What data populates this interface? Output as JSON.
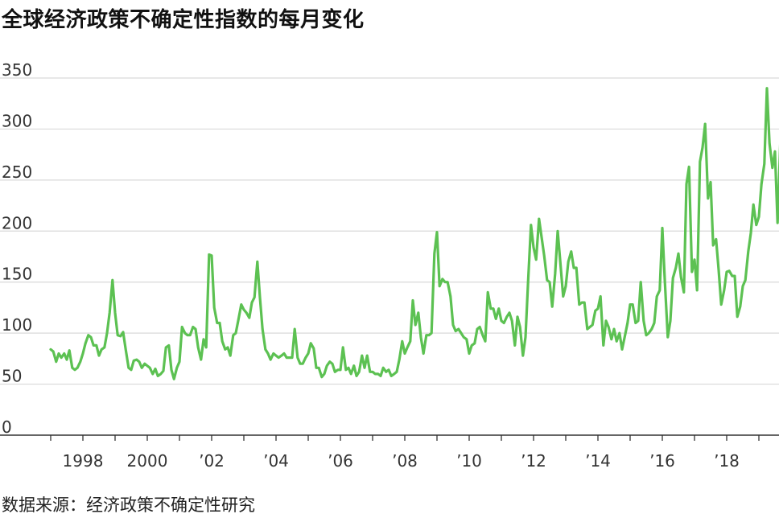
{
  "title": "全球经济政策不确定性指数的每月变化",
  "source": "数据来源：经济政策不确定性研究",
  "colors": {
    "line": "#5cc152",
    "grid": "#d9d9d9",
    "axis": "#333333"
  },
  "chart_data": {
    "type": "line",
    "title": "全球经济政策不确定性指数的每月变化",
    "xlabel": "",
    "ylabel": "",
    "ylim": [
      0,
      350
    ],
    "yticks": [
      "0",
      "50",
      "100",
      "150",
      "200",
      "250",
      "300",
      "350"
    ],
    "ytick_values": [
      0,
      50,
      100,
      150,
      200,
      250,
      300,
      350
    ],
    "xlim": [
      1996.5,
      2019.75
    ],
    "xticks": [
      {
        "value": 1998,
        "label": "1998"
      },
      {
        "value": 2000,
        "label": "2000"
      },
      {
        "value": 2002,
        "label": "’02"
      },
      {
        "value": 2004,
        "label": "’04"
      },
      {
        "value": 2006,
        "label": "’06"
      },
      {
        "value": 2008,
        "label": "’08"
      },
      {
        "value": 2010,
        "label": "’10"
      },
      {
        "value": 2012,
        "label": "’12"
      },
      {
        "value": 2014,
        "label": "’14"
      },
      {
        "value": 2016,
        "label": "’16"
      },
      {
        "value": 2018,
        "label": "’18"
      }
    ],
    "grid": true,
    "series": [
      {
        "name": "",
        "points": [
          [
            1997.0,
            84
          ],
          [
            1997.08,
            82
          ],
          [
            1997.17,
            72
          ],
          [
            1997.25,
            80
          ],
          [
            1997.33,
            76
          ],
          [
            1997.42,
            80
          ],
          [
            1997.5,
            74
          ],
          [
            1997.58,
            83
          ],
          [
            1997.67,
            66
          ],
          [
            1997.75,
            64
          ],
          [
            1997.83,
            66
          ],
          [
            1997.92,
            72
          ],
          [
            1998.0,
            80
          ],
          [
            1998.08,
            90
          ],
          [
            1998.17,
            98
          ],
          [
            1998.25,
            96
          ],
          [
            1998.33,
            88
          ],
          [
            1998.42,
            88
          ],
          [
            1998.5,
            78
          ],
          [
            1998.58,
            84
          ],
          [
            1998.67,
            86
          ],
          [
            1998.75,
            100
          ],
          [
            1998.83,
            120
          ],
          [
            1998.92,
            152
          ],
          [
            1999.0,
            120
          ],
          [
            1999.08,
            98
          ],
          [
            1999.17,
            97
          ],
          [
            1999.25,
            101
          ],
          [
            1999.33,
            84
          ],
          [
            1999.42,
            66
          ],
          [
            1999.5,
            64
          ],
          [
            1999.58,
            73
          ],
          [
            1999.67,
            74
          ],
          [
            1999.75,
            72
          ],
          [
            1999.83,
            66
          ],
          [
            1999.92,
            70
          ],
          [
            2000.0,
            68
          ],
          [
            2000.08,
            66
          ],
          [
            2000.17,
            60
          ],
          [
            2000.25,
            65
          ],
          [
            2000.33,
            58
          ],
          [
            2000.42,
            60
          ],
          [
            2000.5,
            63
          ],
          [
            2000.58,
            86
          ],
          [
            2000.67,
            88
          ],
          [
            2000.75,
            64
          ],
          [
            2000.83,
            55
          ],
          [
            2000.92,
            66
          ],
          [
            2001.0,
            72
          ],
          [
            2001.08,
            106
          ],
          [
            2001.17,
            100
          ],
          [
            2001.25,
            98
          ],
          [
            2001.33,
            98
          ],
          [
            2001.42,
            106
          ],
          [
            2001.5,
            104
          ],
          [
            2001.58,
            86
          ],
          [
            2001.67,
            74
          ],
          [
            2001.75,
            94
          ],
          [
            2001.83,
            86
          ],
          [
            2001.92,
            177
          ],
          [
            2002.0,
            176
          ],
          [
            2002.08,
            125
          ],
          [
            2002.17,
            110
          ],
          [
            2002.25,
            110
          ],
          [
            2002.33,
            92
          ],
          [
            2002.42,
            84
          ],
          [
            2002.5,
            86
          ],
          [
            2002.58,
            78
          ],
          [
            2002.67,
            98
          ],
          [
            2002.75,
            100
          ],
          [
            2002.83,
            113
          ],
          [
            2002.92,
            128
          ],
          [
            2003.0,
            123
          ],
          [
            2003.08,
            120
          ],
          [
            2003.17,
            115
          ],
          [
            2003.25,
            130
          ],
          [
            2003.33,
            135
          ],
          [
            2003.42,
            170
          ],
          [
            2003.5,
            135
          ],
          [
            2003.58,
            104
          ],
          [
            2003.67,
            84
          ],
          [
            2003.75,
            80
          ],
          [
            2003.83,
            74
          ],
          [
            2003.92,
            80
          ],
          [
            2004.0,
            78
          ],
          [
            2004.08,
            76
          ],
          [
            2004.17,
            78
          ],
          [
            2004.25,
            80
          ],
          [
            2004.33,
            76
          ],
          [
            2004.42,
            76
          ],
          [
            2004.5,
            76
          ],
          [
            2004.58,
            104
          ],
          [
            2004.67,
            76
          ],
          [
            2004.75,
            70
          ],
          [
            2004.83,
            70
          ],
          [
            2004.92,
            76
          ],
          [
            2005.0,
            80
          ],
          [
            2005.08,
            90
          ],
          [
            2005.17,
            85
          ],
          [
            2005.25,
            66
          ],
          [
            2005.33,
            66
          ],
          [
            2005.42,
            57
          ],
          [
            2005.5,
            60
          ],
          [
            2005.58,
            68
          ],
          [
            2005.67,
            72
          ],
          [
            2005.75,
            70
          ],
          [
            2005.83,
            62
          ],
          [
            2005.92,
            64
          ],
          [
            2006.0,
            64
          ],
          [
            2006.08,
            86
          ],
          [
            2006.17,
            64
          ],
          [
            2006.25,
            66
          ],
          [
            2006.33,
            60
          ],
          [
            2006.42,
            68
          ],
          [
            2006.5,
            58
          ],
          [
            2006.58,
            62
          ],
          [
            2006.67,
            78
          ],
          [
            2006.75,
            66
          ],
          [
            2006.83,
            78
          ],
          [
            2006.92,
            62
          ],
          [
            2007.0,
            62
          ],
          [
            2007.08,
            60
          ],
          [
            2007.17,
            60
          ],
          [
            2007.25,
            58
          ],
          [
            2007.33,
            66
          ],
          [
            2007.42,
            62
          ],
          [
            2007.5,
            64
          ],
          [
            2007.58,
            58
          ],
          [
            2007.67,
            60
          ],
          [
            2007.75,
            62
          ],
          [
            2007.83,
            74
          ],
          [
            2007.92,
            92
          ],
          [
            2008.0,
            80
          ],
          [
            2008.08,
            86
          ],
          [
            2008.17,
            92
          ],
          [
            2008.25,
            132
          ],
          [
            2008.33,
            108
          ],
          [
            2008.42,
            120
          ],
          [
            2008.5,
            96
          ],
          [
            2008.58,
            80
          ],
          [
            2008.67,
            98
          ],
          [
            2008.75,
            98
          ],
          [
            2008.83,
            100
          ],
          [
            2008.92,
            178
          ],
          [
            2009.0,
            199
          ],
          [
            2009.08,
            146
          ],
          [
            2009.17,
            153
          ],
          [
            2009.25,
            150
          ],
          [
            2009.33,
            150
          ],
          [
            2009.42,
            136
          ],
          [
            2009.5,
            108
          ],
          [
            2009.58,
            102
          ],
          [
            2009.67,
            104
          ],
          [
            2009.75,
            100
          ],
          [
            2009.83,
            96
          ],
          [
            2009.92,
            94
          ],
          [
            2010.0,
            80
          ],
          [
            2010.08,
            88
          ],
          [
            2010.17,
            90
          ],
          [
            2010.25,
            104
          ],
          [
            2010.33,
            106
          ],
          [
            2010.42,
            98
          ],
          [
            2010.5,
            92
          ],
          [
            2010.58,
            140
          ],
          [
            2010.67,
            124
          ],
          [
            2010.75,
            124
          ],
          [
            2010.83,
            114
          ],
          [
            2010.92,
            124
          ],
          [
            2011.0,
            112
          ],
          [
            2011.08,
            110
          ],
          [
            2011.17,
            116
          ],
          [
            2011.25,
            120
          ],
          [
            2011.33,
            112
          ],
          [
            2011.42,
            88
          ],
          [
            2011.5,
            116
          ],
          [
            2011.58,
            106
          ],
          [
            2011.67,
            78
          ],
          [
            2011.75,
            96
          ],
          [
            2011.83,
            150
          ],
          [
            2011.92,
            206
          ],
          [
            2012.0,
            184
          ],
          [
            2012.08,
            172
          ],
          [
            2012.17,
            212
          ],
          [
            2012.25,
            194
          ],
          [
            2012.33,
            176
          ],
          [
            2012.42,
            152
          ],
          [
            2012.5,
            150
          ],
          [
            2012.58,
            126
          ],
          [
            2012.67,
            158
          ],
          [
            2012.75,
            200
          ],
          [
            2012.83,
            170
          ],
          [
            2012.92,
            136
          ],
          [
            2013.0,
            146
          ],
          [
            2013.08,
            170
          ],
          [
            2013.17,
            180
          ],
          [
            2013.25,
            164
          ],
          [
            2013.33,
            164
          ],
          [
            2013.42,
            128
          ],
          [
            2013.5,
            130
          ],
          [
            2013.58,
            130
          ],
          [
            2013.67,
            104
          ],
          [
            2013.75,
            106
          ],
          [
            2013.83,
            108
          ],
          [
            2013.92,
            122
          ],
          [
            2014.0,
            124
          ],
          [
            2014.08,
            136
          ],
          [
            2014.17,
            88
          ],
          [
            2014.25,
            112
          ],
          [
            2014.33,
            106
          ],
          [
            2014.42,
            94
          ],
          [
            2014.5,
            104
          ],
          [
            2014.58,
            92
          ],
          [
            2014.67,
            100
          ],
          [
            2014.75,
            84
          ],
          [
            2014.83,
            96
          ],
          [
            2014.92,
            110
          ],
          [
            2015.0,
            128
          ],
          [
            2015.08,
            128
          ],
          [
            2015.17,
            110
          ],
          [
            2015.25,
            112
          ],
          [
            2015.33,
            150
          ],
          [
            2015.42,
            112
          ],
          [
            2015.5,
            98
          ],
          [
            2015.58,
            100
          ],
          [
            2015.67,
            104
          ],
          [
            2015.75,
            110
          ],
          [
            2015.83,
            136
          ],
          [
            2015.92,
            142
          ],
          [
            2016.0,
            203
          ],
          [
            2016.08,
            150
          ],
          [
            2016.17,
            96
          ],
          [
            2016.25,
            112
          ],
          [
            2016.33,
            154
          ],
          [
            2016.42,
            164
          ],
          [
            2016.5,
            178
          ],
          [
            2016.58,
            155
          ],
          [
            2016.67,
            140
          ],
          [
            2016.75,
            246
          ],
          [
            2016.83,
            263
          ],
          [
            2016.92,
            160
          ],
          [
            2017.0,
            172
          ],
          [
            2017.08,
            142
          ],
          [
            2017.17,
            268
          ],
          [
            2017.25,
            282
          ],
          [
            2017.33,
            305
          ],
          [
            2017.42,
            232
          ],
          [
            2017.5,
            248
          ],
          [
            2017.58,
            186
          ],
          [
            2017.67,
            192
          ],
          [
            2017.75,
            162
          ],
          [
            2017.83,
            128
          ],
          [
            2017.92,
            142
          ],
          [
            2018.0,
            160
          ],
          [
            2018.08,
            161
          ],
          [
            2018.17,
            156
          ],
          [
            2018.25,
            156
          ],
          [
            2018.33,
            116
          ],
          [
            2018.42,
            126
          ],
          [
            2018.5,
            146
          ],
          [
            2018.58,
            152
          ],
          [
            2018.67,
            180
          ],
          [
            2018.75,
            198
          ],
          [
            2018.83,
            226
          ],
          [
            2018.92,
            206
          ],
          [
            2019.0,
            214
          ],
          [
            2019.08,
            246
          ],
          [
            2019.17,
            266
          ],
          [
            2019.25,
            340
          ],
          [
            2019.33,
            286
          ],
          [
            2019.42,
            262
          ],
          [
            2019.5,
            278
          ],
          [
            2019.58,
            208
          ],
          [
            2019.67,
            290
          ],
          [
            2019.75,
            338
          ]
        ]
      }
    ]
  }
}
